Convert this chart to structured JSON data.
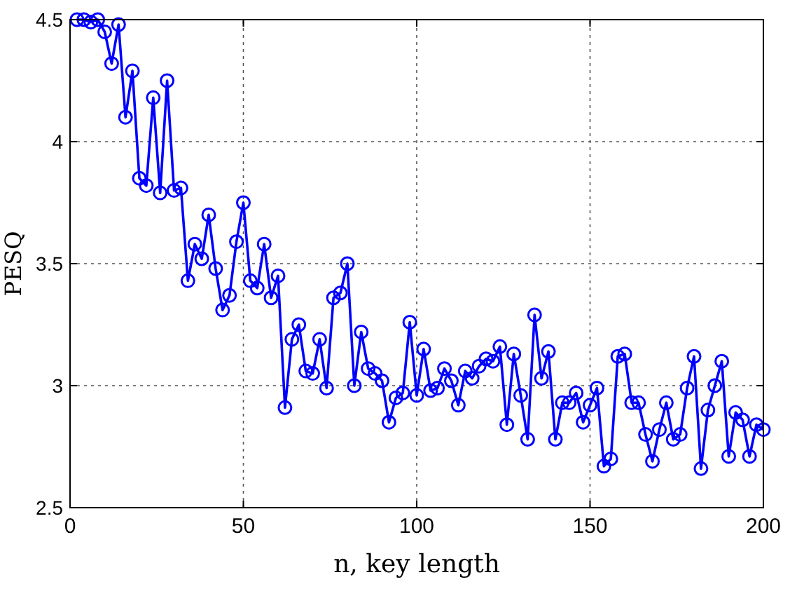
{
  "chart_data": {
    "type": "line",
    "xlabel": "n, key length",
    "ylabel": "PESQ",
    "x": [
      2,
      4,
      6,
      8,
      10,
      12,
      14,
      16,
      18,
      20,
      22,
      24,
      26,
      28,
      30,
      32,
      34,
      36,
      38,
      40,
      42,
      44,
      46,
      48,
      50,
      52,
      54,
      56,
      58,
      60,
      62,
      64,
      66,
      68,
      70,
      72,
      74,
      76,
      78,
      80,
      82,
      84,
      86,
      88,
      90,
      92,
      94,
      96,
      98,
      100,
      102,
      104,
      106,
      108,
      110,
      112,
      114,
      116,
      118,
      120,
      122,
      124,
      126,
      128,
      130,
      132,
      134,
      136,
      138,
      140,
      142,
      144,
      146,
      148,
      150,
      152,
      154,
      156,
      158,
      160,
      162,
      164,
      166,
      168,
      170,
      172,
      174,
      176,
      178,
      180,
      182,
      184,
      186,
      188,
      190,
      192,
      194,
      196,
      198,
      200
    ],
    "series": [
      {
        "color": "#0000ff",
        "values": [
          4.5,
          4.5,
          4.49,
          4.5,
          4.45,
          4.32,
          4.48,
          4.1,
          4.29,
          3.85,
          3.82,
          4.18,
          3.79,
          4.25,
          3.8,
          3.81,
          3.43,
          3.58,
          3.52,
          3.7,
          3.48,
          3.31,
          3.37,
          3.59,
          3.75,
          3.43,
          3.4,
          3.58,
          3.36,
          3.45,
          2.91,
          3.19,
          3.25,
          3.06,
          3.05,
          3.19,
          2.99,
          3.36,
          3.38,
          3.5,
          3.0,
          3.22,
          3.07,
          3.05,
          3.02,
          2.85,
          2.95,
          2.97,
          3.26,
          2.96,
          3.15,
          2.98,
          2.99,
          3.07,
          3.02,
          2.92,
          3.06,
          3.03,
          3.08,
          3.11,
          3.1,
          3.16,
          2.84,
          3.13,
          2.96,
          2.78,
          3.29,
          3.03,
          3.14,
          2.78,
          2.93,
          2.93,
          2.97,
          2.85,
          2.92,
          2.99,
          2.67,
          2.7,
          3.12,
          3.13,
          2.93,
          2.93,
          2.8,
          2.69,
          2.82,
          2.93,
          2.78,
          2.8,
          2.99,
          3.12,
          2.66,
          2.9,
          3.0,
          3.1,
          2.71,
          2.89,
          2.86,
          2.71,
          2.84,
          2.82
        ]
      }
    ],
    "xlim": [
      0,
      200
    ],
    "xticks": [
      0,
      50,
      100,
      150,
      200
    ],
    "ylim": [
      2.5,
      4.5
    ],
    "yticks": [
      2.5,
      3,
      3.5,
      4,
      4.5
    ],
    "grid": true,
    "marker": "circle",
    "line_style": "solid"
  }
}
